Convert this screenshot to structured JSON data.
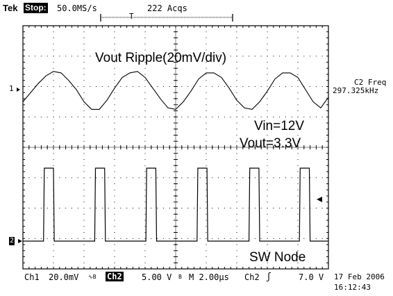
{
  "header": {
    "brand": "Tek",
    "run_state": "Stop:",
    "sample_rate": "50.0MS/s",
    "acquisitions": "222 Acqs",
    "trigger_marker": "T"
  },
  "annotations": {
    "top_label": "Vout Ripple(20mV/div)",
    "vin": "Vin=12V",
    "vout": "Vout=3.3V",
    "bottom_label": "SW Node"
  },
  "measurement": {
    "label": "C2 Freq",
    "value": "297.325kHz"
  },
  "markers": {
    "ch1": "1",
    "ch2": "2"
  },
  "footer": {
    "ch1_label": "Ch1",
    "ch1_scale": "20.0mV",
    "ch1_coupling": "∿B",
    "ch2_label": "Ch2",
    "ch2_scale": "5.00 V",
    "ch2_bw": "B",
    "timebase": "M 2.00µs",
    "trigger_source": "Ch2",
    "trigger_slope": "ʃ",
    "trigger_level": "7.0 V",
    "date": "17 Feb 2006",
    "time": "16:12:43"
  },
  "colors": {
    "background": "#ffffff",
    "trace": "#000000",
    "grid": "#000000"
  },
  "chart_data": {
    "type": "line",
    "title": "",
    "xlabel": "",
    "ylabel": "",
    "xlim_us": [
      0,
      20
    ],
    "grid": "10x8 dotted graticule",
    "series": [
      {
        "name": "Vout Ripple(20mV/div)",
        "channel": 1,
        "x_us": [
          0,
          0.5,
          1,
          1.5,
          2,
          2.5,
          3,
          3.5,
          4,
          4.5,
          5,
          5.5,
          6,
          6.5,
          7,
          7.5,
          8,
          8.5,
          9,
          9.5,
          10,
          10.5,
          11,
          11.5,
          12,
          12.5,
          13,
          13.5,
          14,
          14.5,
          15,
          15.5,
          16,
          16.5,
          17,
          17.5,
          18,
          18.5,
          19,
          19.5,
          20
        ],
        "y_mV": [
          -8,
          -2,
          4,
          9,
          12,
          11,
          6,
          0,
          -8,
          -13,
          -13,
          -7,
          1,
          8,
          11,
          12,
          8,
          1,
          -6,
          -12,
          -13,
          -8,
          -1,
          7,
          11,
          11,
          8,
          1,
          -7,
          -12,
          -13,
          -8,
          -1,
          7,
          11,
          11,
          8,
          0,
          -8,
          -12,
          -5
        ]
      },
      {
        "name": "SW Node",
        "channel": 2,
        "x_us": [
          0,
          1.35,
          1.4,
          2.0,
          2.05,
          4.7,
          4.75,
          5.35,
          5.4,
          8.05,
          8.1,
          8.7,
          8.75,
          11.4,
          11.45,
          12.05,
          12.1,
          14.8,
          14.85,
          15.45,
          15.5,
          18.1,
          18.15,
          18.75,
          18.8,
          20
        ],
        "y_V": [
          0,
          0,
          12,
          12,
          0,
          0,
          12,
          12,
          0,
          0,
          12,
          12,
          0,
          0,
          12,
          12,
          0,
          0,
          12,
          12,
          0,
          0,
          12,
          12,
          0,
          0
        ]
      }
    ]
  }
}
